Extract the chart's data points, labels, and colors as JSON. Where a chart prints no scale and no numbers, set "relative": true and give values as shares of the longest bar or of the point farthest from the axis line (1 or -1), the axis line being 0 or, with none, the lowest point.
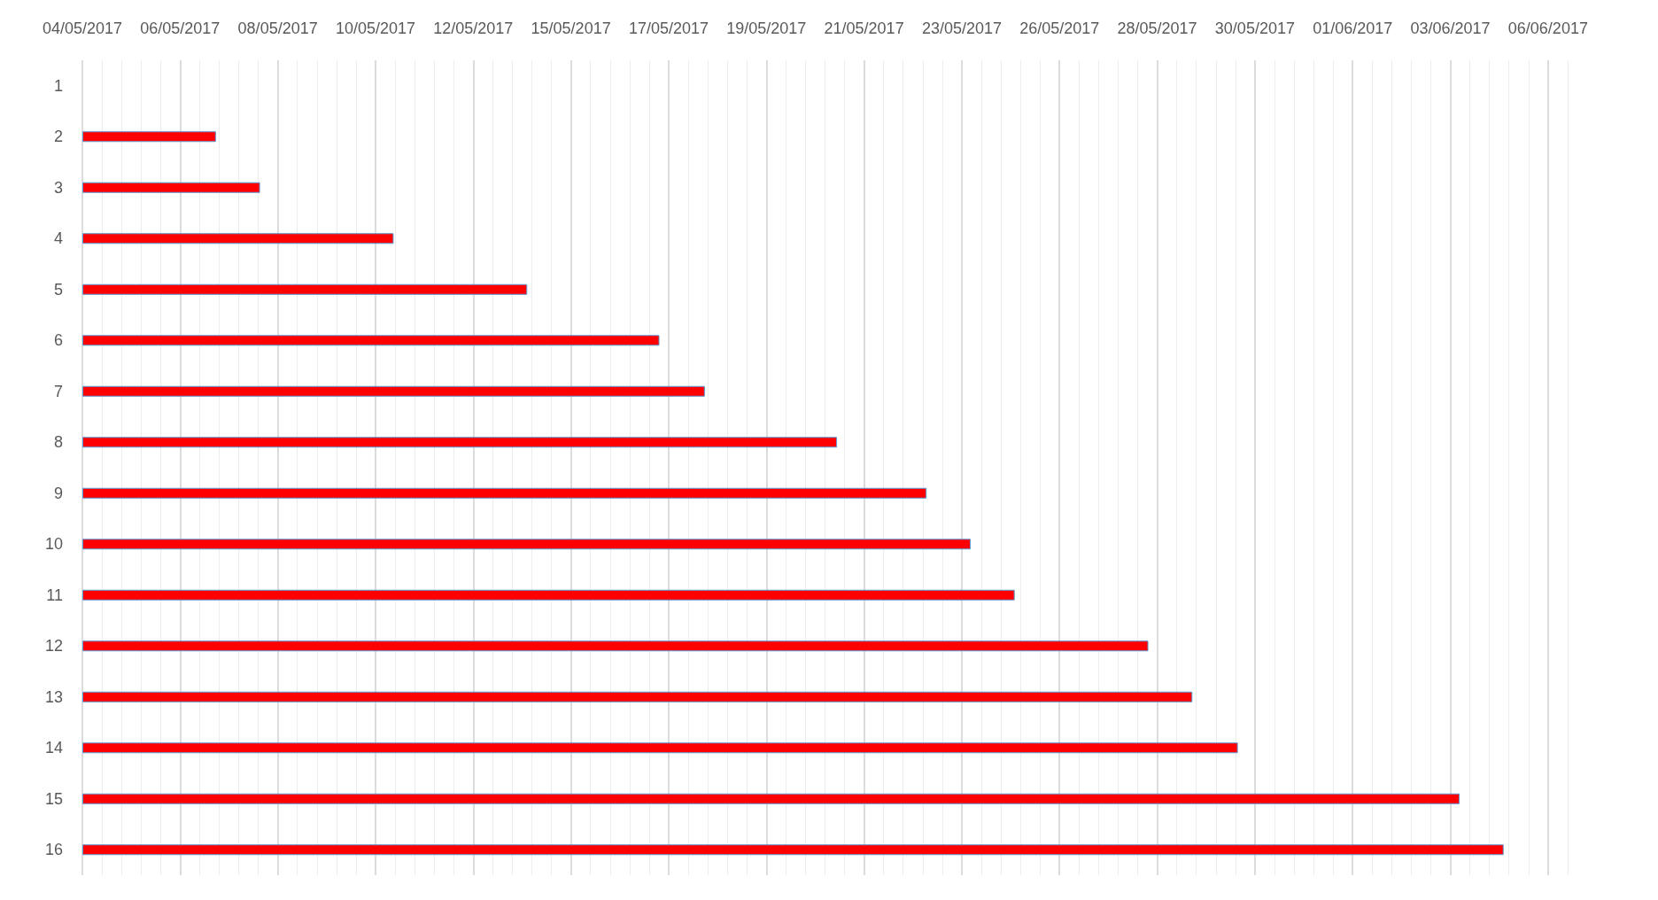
{
  "chart_data": {
    "type": "bar",
    "orientation": "horizontal",
    "relative": true,
    "categories": [
      "1",
      "2",
      "3",
      "4",
      "5",
      "6",
      "7",
      "8",
      "9",
      "10",
      "11",
      "12",
      "13",
      "14",
      "15",
      "16"
    ],
    "values": [
      null,
      0.094,
      0.125,
      0.219,
      0.313,
      0.406,
      0.438,
      0.531,
      0.594,
      0.625,
      0.656,
      0.75,
      0.781,
      0.813,
      0.969,
      1
    ],
    "color": "#ff0000",
    "annotations": [
      "04/05/2017",
      "06/05/2017",
      "08/05/2017",
      "10/05/2017",
      "12/05/2017",
      "15/05/2017",
      "17/05/2017",
      "19/05/2017",
      "21/05/2017",
      "23/05/2017",
      "26/05/2017",
      "28/05/2017",
      "30/05/2017",
      "01/06/2017",
      "03/06/2017",
      "06/06/2017"
    ],
    "grid": "x"
  }
}
